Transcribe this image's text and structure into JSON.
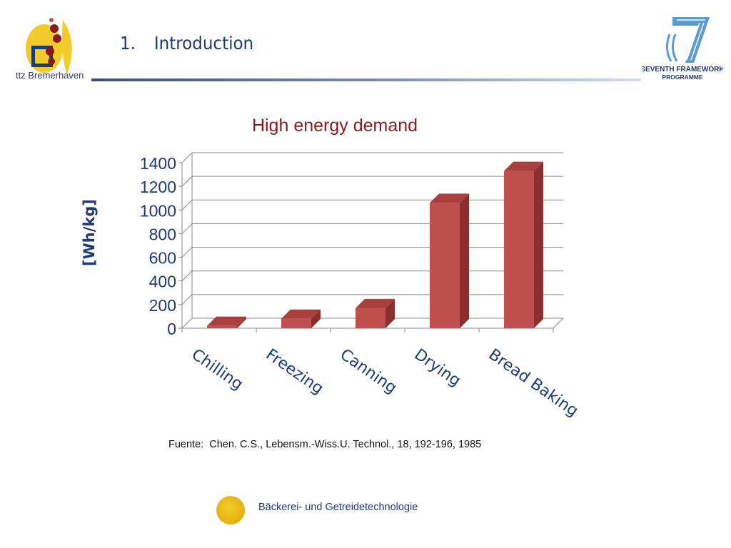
{
  "header": {
    "section_number": "1.",
    "section_title": "Introduction",
    "left_logo_text": "ttz Bremerhaven",
    "right_logo_text_line1": "SEVENTH FRAMEWORK",
    "right_logo_text_line2": "PROGRAMME"
  },
  "chart_data": {
    "type": "bar",
    "title": "High energy demand",
    "ylabel": "[Wh/kg]",
    "xlabel": "",
    "categories": [
      "Chilling",
      "Freezing",
      "Canning",
      "Drying",
      "Bread Baking"
    ],
    "values": [
      20,
      80,
      170,
      1060,
      1330
    ],
    "ylim": [
      0,
      1400
    ],
    "yticks": [
      "0",
      "200",
      "400",
      "600",
      "800",
      "1000",
      "1200",
      "1400"
    ],
    "grid": true,
    "style": "3d",
    "bar_color": "#c0504d",
    "bar_side_color": "#8c2e2b",
    "bar_top_color": "#a9403d"
  },
  "source": {
    "label": "Fuente:",
    "text": "Chen. C.S., Lebensm.-Wiss.U. Technol., 18, 192-196, 1985"
  },
  "footer": {
    "text": "Bäckerei- und Getreidetechnologie"
  },
  "colors": {
    "title_blue": "#1f3a78",
    "chart_title_red": "#8b1a1a",
    "logo_yellow": "#f2cc2a"
  }
}
